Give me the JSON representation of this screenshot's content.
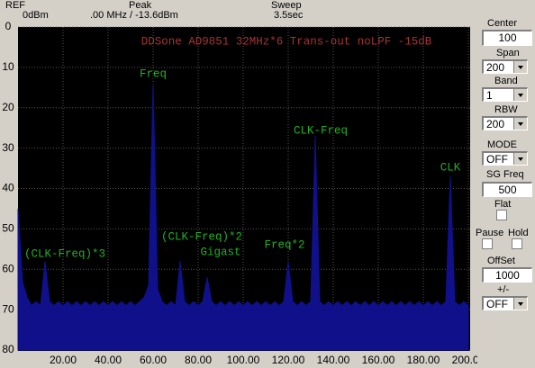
{
  "header": {
    "ref_label": "REF",
    "ref_value": "0dBm",
    "peak_label": "Peak",
    "peak_value": ".00 MHz / -13.6dBm",
    "sweep_label": "Sweep",
    "sweep_value": "3.5sec"
  },
  "chart_data": {
    "type": "area",
    "title": "DDSone AD9851 32MHz*6 Trans-out noLPF -15dB",
    "annotations": [
      "Freq",
      "(CLK-Freq)*2",
      "Gigast",
      "Freq*2",
      "(CLK-Freq)*3",
      "CLK-Freq",
      "CLK"
    ],
    "x": [
      0,
      2,
      4,
      6,
      8,
      10,
      12,
      14,
      16,
      18,
      20,
      22,
      24,
      26,
      28,
      30,
      32,
      34,
      36,
      38,
      40,
      42,
      44,
      46,
      48,
      50,
      52,
      54,
      56,
      58,
      60,
      62,
      64,
      66,
      68,
      70,
      72,
      74,
      76,
      78,
      80,
      82,
      84,
      86,
      88,
      90,
      92,
      94,
      96,
      98,
      100,
      102,
      104,
      106,
      108,
      110,
      112,
      114,
      116,
      118,
      120,
      122,
      124,
      126,
      128,
      130,
      132,
      134,
      136,
      138,
      140,
      142,
      144,
      146,
      148,
      150,
      152,
      154,
      156,
      158,
      160,
      162,
      164,
      166,
      168,
      170,
      172,
      174,
      176,
      178,
      180,
      182,
      184,
      186,
      188,
      190,
      192,
      194,
      196,
      198,
      200
    ],
    "values": [
      45,
      63,
      67,
      69,
      68,
      69,
      58,
      68,
      69,
      68,
      69,
      68,
      69,
      68,
      69,
      68,
      69,
      68,
      69,
      68,
      69,
      68,
      69,
      68,
      69,
      68,
      69,
      68,
      67,
      64,
      14,
      65,
      68,
      69,
      68,
      69,
      58,
      68,
      69,
      68,
      69,
      68,
      62,
      68,
      69,
      68,
      69,
      68,
      69,
      68,
      69,
      68,
      69,
      68,
      69,
      68,
      69,
      68,
      69,
      68,
      58,
      68,
      69,
      68,
      69,
      68,
      27,
      68,
      69,
      68,
      69,
      68,
      69,
      68,
      69,
      68,
      69,
      68,
      69,
      68,
      69,
      68,
      69,
      68,
      69,
      68,
      69,
      68,
      69,
      68,
      69,
      68,
      69,
      68,
      69,
      68,
      37,
      68,
      69,
      68,
      69
    ],
    "color": "#10108a",
    "xlim": [
      0,
      200
    ],
    "ylim": [
      80,
      0
    ],
    "xticks": [
      {
        "value": 20,
        "label": "20.00"
      },
      {
        "value": 40,
        "label": "40.00"
      },
      {
        "value": 60,
        "label": "60.00"
      },
      {
        "value": 80,
        "label": "80.00"
      },
      {
        "value": 100,
        "label": "100.00"
      },
      {
        "value": 120,
        "label": "120.00"
      },
      {
        "value": 140,
        "label": "140.00"
      },
      {
        "value": 160,
        "label": "160.00"
      },
      {
        "value": 180,
        "label": "180.00"
      },
      {
        "value": 200,
        "label": "200.00"
      }
    ],
    "yticks": [
      0,
      10,
      20,
      30,
      40,
      50,
      60,
      70,
      80
    ],
    "grid": true
  },
  "controls": {
    "center": {
      "label": "Center",
      "value": "100"
    },
    "span": {
      "label": "Span",
      "value": "200"
    },
    "band": {
      "label": "Band",
      "value": "1"
    },
    "rbw": {
      "label": "RBW",
      "value": "200"
    },
    "mode": {
      "label": "MODE",
      "value": "OFF"
    },
    "sg_freq": {
      "label": "SG Freq",
      "value": "500"
    },
    "flat": {
      "label": "Flat"
    },
    "pause": {
      "label": "Pause"
    },
    "hold": {
      "label": "Hold"
    },
    "offset": {
      "label": "OffSet",
      "value": "1000"
    },
    "sign": {
      "label": "+/-",
      "value": "OFF"
    }
  }
}
